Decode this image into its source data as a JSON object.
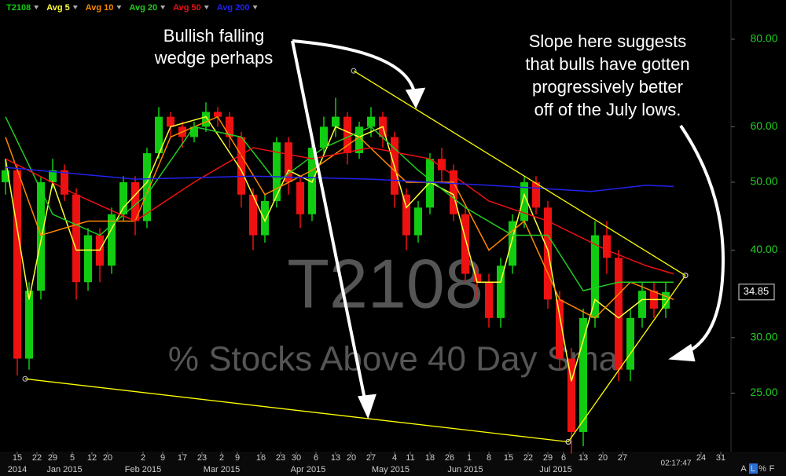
{
  "chart_data": {
    "type": "candlestick",
    "name": "T2108",
    "title": "T2108",
    "subtitle": "% Stocks Above 40 Day Sma",
    "color_up": "#11cc11",
    "color_down": "#ee1111",
    "x": [
      -3,
      0,
      3,
      6,
      9,
      12,
      15,
      18,
      21,
      24,
      27,
      30,
      33,
      36,
      39,
      42,
      45,
      48,
      51,
      54,
      57,
      60,
      63,
      66,
      69,
      72,
      75,
      78,
      81,
      84,
      87,
      90,
      93,
      96,
      99,
      102,
      105,
      108,
      111,
      114,
      117,
      120,
      123,
      126,
      129,
      132,
      135,
      138,
      141,
      144,
      147,
      150,
      153,
      156,
      159,
      162,
      165
    ],
    "open": [
      50,
      52,
      28,
      35,
      50,
      52,
      48,
      36,
      42,
      38,
      45,
      50,
      44,
      55,
      62,
      60,
      58,
      60,
      63,
      62,
      58,
      48,
      42,
      47,
      57,
      50,
      45,
      56,
      60,
      62,
      55,
      60,
      62,
      58,
      48,
      42,
      46,
      54,
      52,
      45,
      37,
      36,
      32,
      38,
      44,
      50,
      46,
      34,
      28,
      22,
      32,
      42,
      39,
      27,
      32,
      35,
      33
    ],
    "high": [
      54,
      53,
      36,
      51,
      54,
      53,
      49,
      43,
      43,
      46,
      51,
      51,
      56,
      64,
      63,
      61,
      61,
      65,
      64,
      63,
      59,
      49,
      48,
      58,
      58,
      51,
      57,
      62,
      66,
      63,
      61,
      64,
      63,
      59,
      49,
      47,
      55,
      56,
      53,
      46,
      38,
      37,
      39,
      45,
      51,
      51,
      47,
      35,
      29,
      33,
      44,
      44,
      40,
      33,
      36,
      36,
      36
    ],
    "low": [
      48,
      26.5,
      27,
      34,
      49,
      47,
      34,
      35,
      36,
      37,
      44,
      42,
      43,
      54,
      58,
      56,
      57,
      59,
      60,
      56,
      46,
      40,
      41,
      46,
      48,
      43,
      44,
      55,
      58,
      53,
      54,
      58,
      56,
      46,
      40,
      41,
      45,
      50,
      44,
      36,
      34,
      31,
      31,
      37,
      43,
      45,
      33,
      27,
      20.5,
      21,
      31,
      37,
      26,
      26,
      31,
      32,
      32
    ],
    "close": [
      52,
      28,
      35,
      50,
      52,
      48,
      36,
      42,
      38,
      45,
      50,
      44,
      55,
      62,
      60,
      58,
      60,
      63,
      62,
      58,
      48,
      42,
      47,
      57,
      50,
      45,
      56,
      60,
      62,
      55,
      60,
      62,
      58,
      48,
      42,
      46,
      54,
      52,
      45,
      37,
      36,
      32,
      38,
      44,
      50,
      46,
      34,
      28,
      22,
      32,
      42,
      39,
      27,
      32,
      35,
      33,
      34.85
    ],
    "series": [
      {
        "name": "Avg 5",
        "color": "#ffff33",
        "x": [
          -3,
          3,
          9,
          15,
          21,
          27,
          33,
          39,
          48,
          57,
          63,
          69,
          75,
          81,
          87,
          93,
          99,
          105,
          111,
          117,
          123,
          129,
          135,
          141,
          147,
          153,
          159,
          165
        ],
        "values": [
          54,
          34,
          50,
          40,
          40,
          46,
          50,
          60,
          62,
          52,
          44,
          52,
          50,
          60,
          58,
          60,
          46,
          50,
          48,
          36,
          36,
          48,
          40,
          26,
          34,
          32,
          34,
          34
        ]
      },
      {
        "name": "Avg 10",
        "color": "#ff8800",
        "x": [
          -3,
          6,
          18,
          30,
          39,
          51,
          63,
          75,
          87,
          99,
          111,
          120,
          129,
          138,
          147,
          156,
          167
        ],
        "values": [
          58,
          42,
          44,
          44,
          58,
          62,
          48,
          52,
          58,
          50,
          50,
          40,
          44,
          34,
          32,
          36,
          34
        ]
      },
      {
        "name": "Avg 20",
        "color": "#22cc22",
        "x": [
          -3,
          9,
          21,
          33,
          45,
          57,
          66,
          78,
          90,
          102,
          114,
          126,
          135,
          144,
          153,
          160,
          167
        ],
        "values": [
          62,
          45,
          42,
          48,
          60,
          58,
          50,
          56,
          60,
          52,
          46,
          42,
          42,
          35,
          36,
          36,
          36
        ]
      },
      {
        "name": "Avg 50",
        "color": "#ee1111",
        "x": [
          -3,
          15,
          30,
          45,
          60,
          75,
          90,
          105,
          120,
          135,
          150,
          160,
          167
        ],
        "values": [
          54,
          48,
          44,
          50,
          56,
          54,
          56,
          54,
          47,
          44,
          40,
          38,
          37
        ]
      },
      {
        "name": "Avg 200",
        "color": "#2222ee",
        "x": [
          -3,
          30,
          60,
          90,
          120,
          146,
          160,
          167
        ],
        "values": [
          52.5,
          50.5,
          51,
          50.5,
          49.5,
          48.5,
          49.5,
          49.3
        ]
      }
    ],
    "trendlines": [
      {
        "color": "#ffff00",
        "x": [
          85.6,
          170
        ],
        "values": [
          72.1,
          36.8
        ]
      },
      {
        "color": "#ffff00",
        "x": [
          2,
          140.2
        ],
        "values": [
          26.2,
          21.3
        ]
      },
      {
        "color": "#ffff00",
        "x": [
          140.2,
          170
        ],
        "values": [
          21.3,
          36.8
        ]
      }
    ],
    "yscale": "log",
    "ylim": [
      21,
      91
    ],
    "yticks": [
      {
        "value": 25,
        "label": "25.00"
      },
      {
        "value": 30,
        "label": "30.00"
      },
      {
        "value": 40,
        "label": "40.00"
      },
      {
        "value": 50,
        "label": "50.00"
      },
      {
        "value": 60,
        "label": "60.00"
      },
      {
        "value": 80,
        "label": "80.00"
      }
    ],
    "xlim": [
      -4.4,
      181.6
    ],
    "xticks": [
      {
        "value": 0,
        "label": "15"
      },
      {
        "value": 5,
        "label": "22"
      },
      {
        "value": 9,
        "label": "29"
      },
      {
        "value": 14,
        "label": "5"
      },
      {
        "value": 19,
        "label": "12"
      },
      {
        "value": 23,
        "label": "20"
      },
      {
        "value": 32,
        "label": "2"
      },
      {
        "value": 37,
        "label": "9"
      },
      {
        "value": 42,
        "label": "17"
      },
      {
        "value": 47,
        "label": "23"
      },
      {
        "value": 52,
        "label": "2"
      },
      {
        "value": 56,
        "label": "9"
      },
      {
        "value": 62,
        "label": "16"
      },
      {
        "value": 67,
        "label": "23"
      },
      {
        "value": 71,
        "label": "30"
      },
      {
        "value": 76,
        "label": "6"
      },
      {
        "value": 81,
        "label": "13"
      },
      {
        "value": 85,
        "label": "20"
      },
      {
        "value": 90,
        "label": "27"
      },
      {
        "value": 96,
        "label": "4"
      },
      {
        "value": 100,
        "label": "11"
      },
      {
        "value": 105,
        "label": "18"
      },
      {
        "value": 110,
        "label": "26"
      },
      {
        "value": 115,
        "label": "1"
      },
      {
        "value": 120,
        "label": "8"
      },
      {
        "value": 125,
        "label": "15"
      },
      {
        "value": 130,
        "label": "22"
      },
      {
        "value": 135,
        "label": "29"
      },
      {
        "value": 139,
        "label": "6"
      },
      {
        "value": 144,
        "label": "13"
      },
      {
        "value": 149,
        "label": "20"
      },
      {
        "value": 154,
        "label": "27"
      },
      {
        "value": 174,
        "label": "24"
      },
      {
        "value": 179,
        "label": "31"
      }
    ],
    "month_labels": [
      {
        "value": 0,
        "label": "2014"
      },
      {
        "value": 12,
        "label": "Jan 2015"
      },
      {
        "value": 32,
        "label": "Feb 2015"
      },
      {
        "value": 52,
        "label": "Mar 2015"
      },
      {
        "value": 74,
        "label": "Apr 2015"
      },
      {
        "value": 95,
        "label": "May 2015"
      },
      {
        "value": 114,
        "label": "Jun 2015"
      },
      {
        "value": 137,
        "label": "Jul 2015"
      }
    ],
    "annotations": [
      {
        "lines": [
          "Bullish falling",
          "wedge perhaps"
        ]
      },
      {
        "lines": [
          "Slope here suggests",
          "that bulls have gotten",
          "progressively better",
          "off of the July lows."
        ]
      }
    ],
    "clock": "02:17:47",
    "buttons": [
      "A",
      "L",
      "%",
      "F"
    ]
  }
}
